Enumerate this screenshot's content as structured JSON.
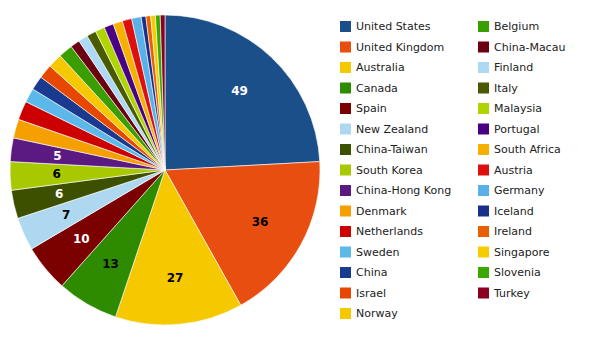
{
  "chart_data": {
    "type": "pie",
    "categories": [
      "United States",
      "United Kingdom",
      "Australia",
      "Canada",
      "Spain",
      "New Zealand",
      "China-Taiwan",
      "South Korea",
      "China-Hong Kong",
      "Denmark",
      "Netherlands",
      "Sweden",
      "China",
      "Israel",
      "Norway",
      "Belgium",
      "China-Macau",
      "Finland",
      "Italy",
      "Malaysia",
      "Portugal",
      "South Africa",
      "Austria",
      "Germany",
      "Iceland",
      "Ireland",
      "Singapore",
      "Slovenia",
      "Turkey"
    ],
    "values": [
      49,
      36,
      27,
      13,
      10,
      7,
      6,
      6,
      5,
      4,
      4,
      3,
      3,
      3,
      3,
      3,
      2,
      2,
      2,
      2,
      2,
      2,
      2,
      2,
      1,
      1,
      1,
      1,
      1
    ],
    "value_labels": [
      "49",
      "36",
      "27",
      "13",
      "10",
      "7",
      "6",
      "6",
      "5",
      null,
      null,
      null,
      null,
      null,
      null,
      null,
      null,
      null,
      null,
      null,
      null,
      null,
      null,
      null,
      null,
      null,
      null,
      null,
      null
    ],
    "colors": [
      "#1B4F8A",
      "#E84E10",
      "#F5C800",
      "#2E8B00",
      "#7B0000",
      "#ADD8F0",
      "#3D5000",
      "#A8C800",
      "#5A1A82",
      "#F5A000",
      "#CC0000",
      "#5BB8E8",
      "#1A3A8F",
      "#E84700",
      "#F5C800",
      "#3B9E00",
      "#6B0010",
      "#ADD8F6",
      "#4A5A00",
      "#B0D400",
      "#4A0082",
      "#F5B000",
      "#DD1010",
      "#5AB0E8",
      "#1A2F8A",
      "#E86000",
      "#F5CC00",
      "#3BA800",
      "#8B0020"
    ],
    "data_labels": true,
    "legend": "right"
  }
}
